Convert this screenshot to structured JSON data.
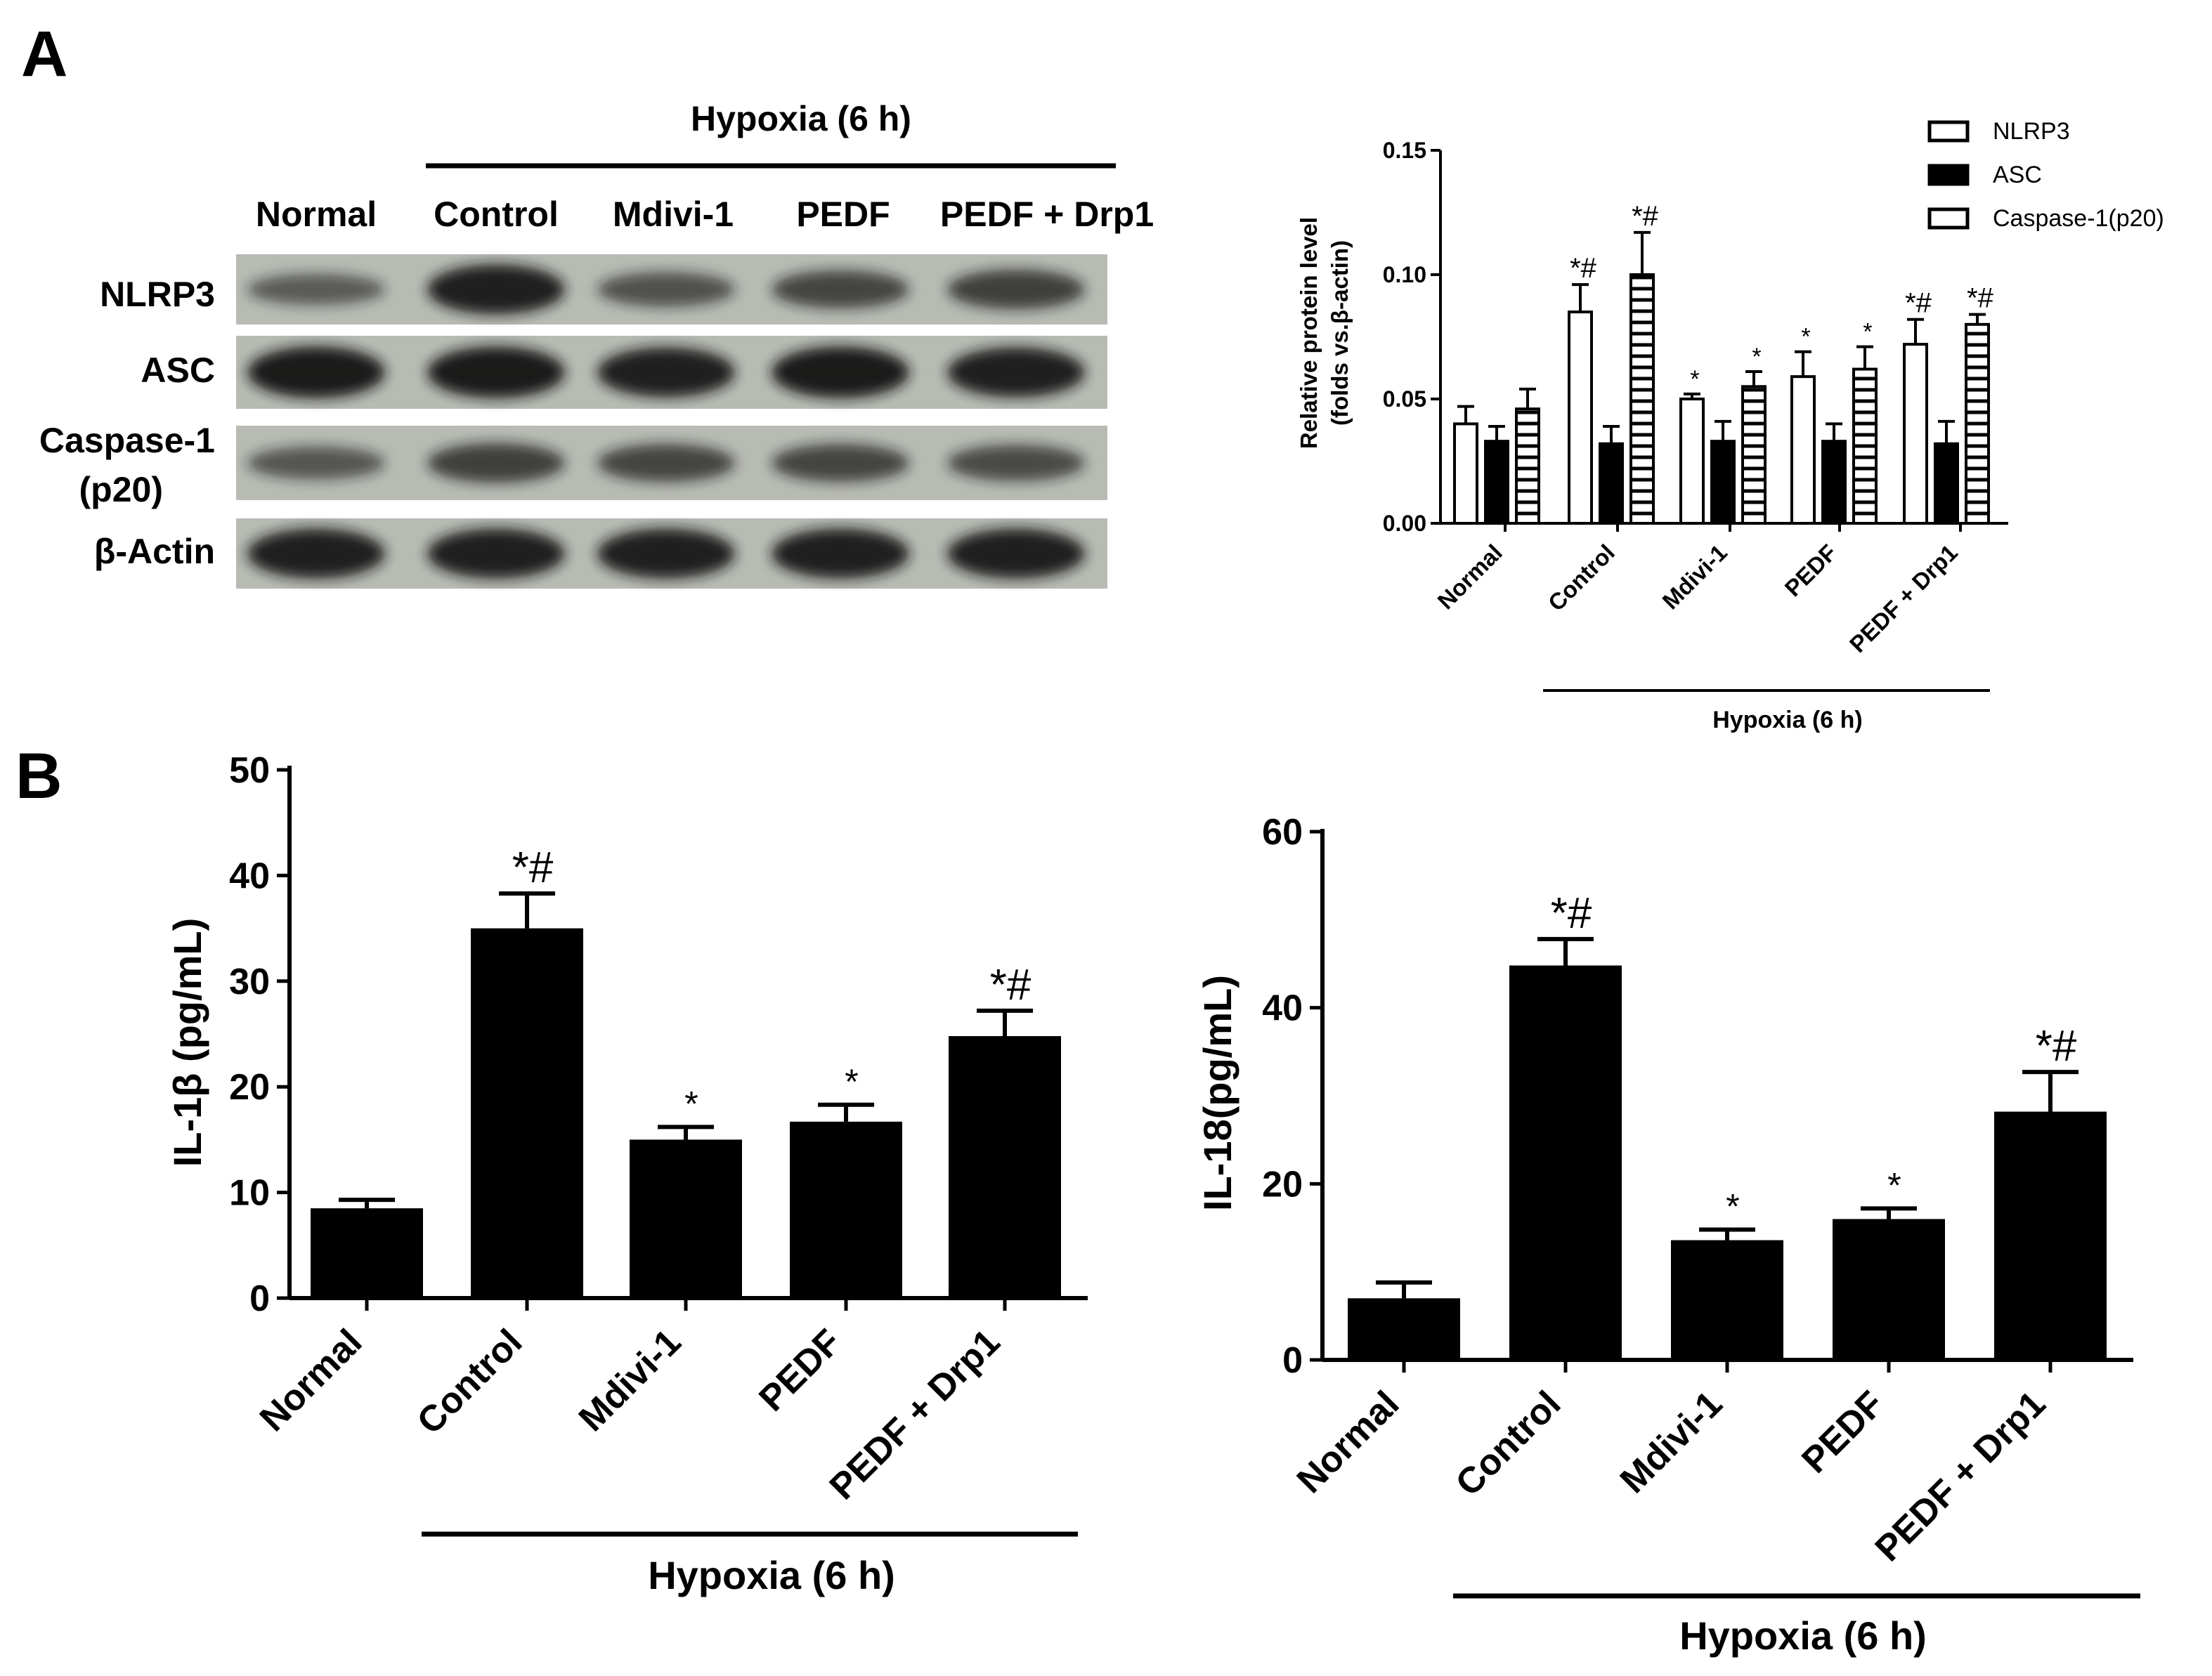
{
  "panel_a_label": "A",
  "panel_b_label": "B",
  "blot": {
    "group_header": "Hypoxia (6 h)",
    "lanes": [
      "Normal",
      "Control",
      "Mdivi-1",
      "PEDF",
      "PEDF + Drp1"
    ],
    "rows": [
      {
        "label": "NLRP3",
        "label2": "",
        "intensity": [
          0.35,
          0.9,
          0.45,
          0.55,
          0.6
        ]
      },
      {
        "label": "ASC",
        "label2": "",
        "intensity": [
          0.95,
          0.95,
          0.9,
          0.95,
          0.9
        ]
      },
      {
        "label": "Caspase-1",
        "label2": "(p20)",
        "intensity": [
          0.4,
          0.6,
          0.55,
          0.55,
          0.5
        ]
      },
      {
        "label": "β-Actin",
        "label2": "",
        "intensity": [
          0.9,
          0.9,
          0.9,
          0.9,
          0.9
        ]
      }
    ],
    "colors": {
      "background": "#b8bbb4",
      "band": "#141414"
    }
  },
  "chart_data": [
    {
      "type": "bar",
      "title": "",
      "ylabel": "Relative protein level",
      "ylabel2": "(folds vs.β-actin)",
      "ylim": [
        0,
        0.15
      ],
      "yticks": [
        "0.00",
        "0.05",
        "0.10",
        "0.15"
      ],
      "categories": [
        "Normal",
        "Control",
        "Mdivi-1",
        "PEDF",
        "PEDF + Drp1"
      ],
      "group_label": "Hypoxia (6 h)",
      "legend_position": "top-right",
      "series": [
        {
          "name": "NLRP3",
          "fill": "open",
          "values": [
            0.04,
            0.085,
            0.05,
            0.059,
            0.072
          ],
          "errors": [
            0.007,
            0.011,
            0.002,
            0.01,
            0.01
          ],
          "annotations": [
            "",
            "*#",
            "*",
            "*",
            "*#"
          ]
        },
        {
          "name": "ASC",
          "fill": "solid",
          "values": [
            0.033,
            0.032,
            0.033,
            0.033,
            0.032
          ],
          "errors": [
            0.006,
            0.007,
            0.008,
            0.007,
            0.009
          ],
          "annotations": [
            "",
            "",
            "",
            "",
            ""
          ]
        },
        {
          "name": "Caspase-1(p20)",
          "fill": "hatched",
          "values": [
            0.046,
            0.1,
            0.055,
            0.062,
            0.08
          ],
          "errors": [
            0.008,
            0.017,
            0.006,
            0.009,
            0.004
          ],
          "annotations": [
            "",
            "*#",
            "*",
            "*",
            "*#"
          ]
        }
      ]
    },
    {
      "type": "bar",
      "title": "",
      "ylabel": "IL-1β (pg/mL)",
      "ylim": [
        0,
        50
      ],
      "yticks": [
        "0",
        "10",
        "20",
        "30",
        "40",
        "50"
      ],
      "categories": [
        "Normal",
        "Control",
        "Mdivi-1",
        "PEDF",
        "PEDF + Drp1"
      ],
      "group_label": "Hypoxia (6 h)",
      "values": [
        8.5,
        35.0,
        15.0,
        16.7,
        24.8
      ],
      "errors": [
        0.8,
        3.3,
        1.2,
        1.6,
        2.4
      ],
      "annotations": [
        "",
        "*#",
        "*",
        "*",
        "*#"
      ]
    },
    {
      "type": "bar",
      "title": "",
      "ylabel": "IL-18(pg/mL)",
      "ylim": [
        0,
        60
      ],
      "yticks": [
        "0",
        "20",
        "40",
        "60"
      ],
      "categories": [
        "Normal",
        "Control",
        "Mdivi-1",
        "PEDF",
        "PEDF + Drp1"
      ],
      "group_label": "Hypoxia (6 h)",
      "values": [
        7.0,
        44.8,
        13.6,
        16.0,
        28.2
      ],
      "errors": [
        1.8,
        3.0,
        1.2,
        1.2,
        4.5
      ],
      "annotations": [
        "",
        "*#",
        "*",
        "*",
        "*#"
      ]
    }
  ]
}
